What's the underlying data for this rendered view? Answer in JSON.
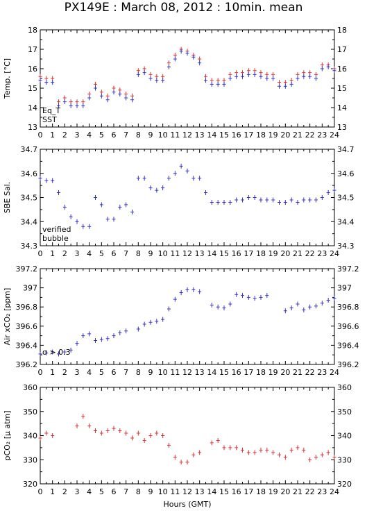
{
  "title": "PX149E : March 08, 2012 : 10min. mean",
  "xlabel": "Hours (GMT)",
  "colors": {
    "blue": "#3333cc",
    "red": "#dd3333",
    "magenta": "#cc33cc",
    "axis": "#000000"
  },
  "chart_data": [
    {
      "type": "scatter",
      "ylabel": "Temp. [°C]",
      "ylim": [
        13,
        18
      ],
      "yticks": [
        "13",
        "14",
        "15",
        "16",
        "17",
        "18"
      ],
      "xlim": [
        0,
        24
      ],
      "xticks": [
        "0",
        "1",
        "2",
        "3",
        "4",
        "5",
        "6",
        "7",
        "8",
        "9",
        "10",
        "11",
        "12",
        "13",
        "14",
        "15",
        "16",
        "17",
        "18",
        "19",
        "20",
        "21",
        "22",
        "23",
        "24"
      ],
      "legend": [
        {
          "label": "Eq_T",
          "color": "#dd3333"
        },
        {
          "label": "SST",
          "color": "#3333cc"
        }
      ],
      "series": [
        {
          "name": "Eq_T",
          "color": "#dd3333",
          "x": [
            0.0,
            0.5,
            1.0,
            1.5,
            2.0,
            2.5,
            3.0,
            3.5,
            4.0,
            4.5,
            5.0,
            5.5,
            6.0,
            6.5,
            7.0,
            7.5,
            8.0,
            8.5,
            9.0,
            9.5,
            10.0,
            10.5,
            11.0,
            11.5,
            12.0,
            12.5,
            13.0,
            13.5,
            14.0,
            14.5,
            15.0,
            15.5,
            16.0,
            16.5,
            17.0,
            17.5,
            18.0,
            18.5,
            19.0,
            19.5,
            20.0,
            20.5,
            21.0,
            21.5,
            22.0,
            22.5,
            23.0,
            23.5,
            24.0
          ],
          "y": [
            15.6,
            15.5,
            15.5,
            14.3,
            14.5,
            14.3,
            14.3,
            14.3,
            14.7,
            15.2,
            14.8,
            14.6,
            15.0,
            14.9,
            14.7,
            14.6,
            15.9,
            16.0,
            15.7,
            15.6,
            15.6,
            16.3,
            16.7,
            17.0,
            16.9,
            16.7,
            16.5,
            15.6,
            15.4,
            15.4,
            15.4,
            15.7,
            15.8,
            15.8,
            15.9,
            15.9,
            15.8,
            15.7,
            15.7,
            15.3,
            15.3,
            15.4,
            15.7,
            15.8,
            15.8,
            15.7,
            16.2,
            16.2,
            16.0
          ]
        },
        {
          "name": "SST",
          "color": "#3333cc",
          "x": [
            0.0,
            0.5,
            1.0,
            1.5,
            2.0,
            2.5,
            3.0,
            3.5,
            4.0,
            4.5,
            5.0,
            5.5,
            6.0,
            6.5,
            7.0,
            7.5,
            8.0,
            8.5,
            9.0,
            9.5,
            10.0,
            10.5,
            11.0,
            11.5,
            12.0,
            12.5,
            13.0,
            13.5,
            14.0,
            14.5,
            15.0,
            15.5,
            16.0,
            16.5,
            17.0,
            17.5,
            18.0,
            18.5,
            19.0,
            19.5,
            20.0,
            20.5,
            21.0,
            21.5,
            22.0,
            22.5,
            23.0,
            23.5,
            24.0
          ],
          "y": [
            15.4,
            15.3,
            15.3,
            14.1,
            14.3,
            14.1,
            14.1,
            14.1,
            14.5,
            15.0,
            14.6,
            14.4,
            14.8,
            14.7,
            14.5,
            14.4,
            15.7,
            15.8,
            15.5,
            15.4,
            15.4,
            16.1,
            16.5,
            16.9,
            16.8,
            16.6,
            16.3,
            15.4,
            15.2,
            15.2,
            15.2,
            15.5,
            15.6,
            15.6,
            15.7,
            15.7,
            15.6,
            15.5,
            15.5,
            15.1,
            15.1,
            15.2,
            15.5,
            15.6,
            15.6,
            15.5,
            16.0,
            16.1,
            15.9
          ]
        }
      ]
    },
    {
      "type": "scatter",
      "ylabel": "SBE Sal.",
      "ylim": [
        34.3,
        34.7
      ],
      "yticks": [
        "34.3",
        "34.4",
        "34.5",
        "34.6",
        "34.7"
      ],
      "xlim": [
        0,
        24
      ],
      "xticks": [
        "0",
        "1",
        "2",
        "3",
        "4",
        "5",
        "6",
        "7",
        "8",
        "9",
        "10",
        "11",
        "12",
        "13",
        "14",
        "15",
        "16",
        "17",
        "18",
        "19",
        "20",
        "21",
        "22",
        "23",
        "24"
      ],
      "legend": [
        {
          "label": "verified",
          "color": "#3333cc"
        },
        {
          "label": "bubble",
          "color": "#cc33cc"
        }
      ],
      "series": [
        {
          "name": "verified",
          "color": "#3333cc",
          "x": [
            0.0,
            0.5,
            1.0,
            1.5,
            2.0,
            2.5,
            3.0,
            3.5,
            4.0,
            4.5,
            5.0,
            5.5,
            6.0,
            6.5,
            7.0,
            7.5,
            8.0,
            8.5,
            9.0,
            9.5,
            10.0,
            10.5,
            11.0,
            11.5,
            12.0,
            12.5,
            13.0,
            13.5,
            14.0,
            14.5,
            15.0,
            15.5,
            16.0,
            16.5,
            17.0,
            17.5,
            18.0,
            18.5,
            19.0,
            19.5,
            20.0,
            20.5,
            21.0,
            21.5,
            22.0,
            22.5,
            23.0,
            23.5,
            24.0
          ],
          "y": [
            34.58,
            34.57,
            34.57,
            34.52,
            34.46,
            34.42,
            34.4,
            34.38,
            34.38,
            34.5,
            34.47,
            34.41,
            34.41,
            34.46,
            34.47,
            34.44,
            34.58,
            34.58,
            34.54,
            34.53,
            34.54,
            34.58,
            34.6,
            34.63,
            34.61,
            34.58,
            34.58,
            34.52,
            34.48,
            34.48,
            34.48,
            34.48,
            34.49,
            34.49,
            34.5,
            34.5,
            34.49,
            34.49,
            34.49,
            34.48,
            34.48,
            34.49,
            34.48,
            34.49,
            34.49,
            34.49,
            34.5,
            34.52,
            34.53
          ]
        }
      ]
    },
    {
      "type": "scatter",
      "ylabel": "Air xCO₂ [ppm]",
      "ylim": [
        396.2,
        397.2
      ],
      "yticks": [
        "396.2",
        "396.4",
        "396.6",
        "396.8",
        "397",
        "397.2"
      ],
      "xlim": [
        0,
        24
      ],
      "xticks": [
        "0",
        "1",
        "2",
        "3",
        "4",
        "5",
        "6",
        "7",
        "8",
        "9",
        "10",
        "11",
        "12",
        "13",
        "14",
        "15",
        "16",
        "17",
        "18",
        "19",
        "20",
        "21",
        "22",
        "23",
        "24"
      ],
      "annotation": "σ > 0.3",
      "series": [
        {
          "name": "",
          "color": "#3333cc",
          "x": [
            0.0,
            0.5,
            1.0,
            1.5,
            2.0,
            2.5,
            3.0,
            3.5,
            4.0,
            4.5,
            5.0,
            5.5,
            6.0,
            6.5,
            7.0,
            8.0,
            8.5,
            9.0,
            9.5,
            10.0,
            10.5,
            11.0,
            11.5,
            12.0,
            12.5,
            13.0,
            14.0,
            14.5,
            15.0,
            15.5,
            16.0,
            16.5,
            17.0,
            17.5,
            18.0,
            18.5,
            20.0,
            20.5,
            21.0,
            21.5,
            22.0,
            22.5,
            23.0,
            23.5,
            24.0
          ],
          "y": [
            396.31,
            396.32,
            396.33,
            396.31,
            396.33,
            396.35,
            396.42,
            396.5,
            396.52,
            396.45,
            396.46,
            396.47,
            396.5,
            396.53,
            396.55,
            396.57,
            396.62,
            396.64,
            396.65,
            396.67,
            396.78,
            396.88,
            396.95,
            396.98,
            396.98,
            396.96,
            396.82,
            396.8,
            396.79,
            396.83,
            396.93,
            396.92,
            396.9,
            396.89,
            396.9,
            396.92,
            396.76,
            396.79,
            396.83,
            396.77,
            396.8,
            396.81,
            396.84,
            396.87,
            396.89
          ]
        }
      ]
    },
    {
      "type": "scatter",
      "ylabel": "pCO₂ [µ atm]",
      "ylim": [
        320,
        360
      ],
      "yticks": [
        "320",
        "330",
        "340",
        "350",
        "360"
      ],
      "xlim": [
        0,
        24
      ],
      "xticks": [
        "0",
        "1",
        "2",
        "3",
        "4",
        "5",
        "6",
        "7",
        "8",
        "9",
        "10",
        "11",
        "12",
        "13",
        "14",
        "15",
        "16",
        "17",
        "18",
        "19",
        "20",
        "21",
        "22",
        "23",
        "24"
      ],
      "series": [
        {
          "name": "",
          "color": "#dd3333",
          "x": [
            0.0,
            0.5,
            1.0,
            3.0,
            3.5,
            4.0,
            4.5,
            5.0,
            5.5,
            6.0,
            6.5,
            7.0,
            7.5,
            8.0,
            8.5,
            9.0,
            9.5,
            10.0,
            10.5,
            11.0,
            11.5,
            12.0,
            12.5,
            13.0,
            14.0,
            14.5,
            15.0,
            15.5,
            16.0,
            16.5,
            17.0,
            17.5,
            18.0,
            18.5,
            19.0,
            19.5,
            20.0,
            20.5,
            21.0,
            21.5,
            22.0,
            22.5,
            23.0,
            23.5,
            24.0
          ],
          "y": [
            339,
            341,
            340,
            344,
            348,
            344,
            342,
            341,
            342,
            343,
            342,
            341,
            339,
            341,
            338,
            340,
            341,
            340,
            336,
            331,
            329,
            329,
            332,
            333,
            337,
            338,
            335,
            335,
            335,
            334,
            333,
            333,
            334,
            334,
            333,
            332,
            331,
            334,
            335,
            334,
            330,
            331,
            332,
            333,
            331
          ]
        }
      ]
    }
  ]
}
